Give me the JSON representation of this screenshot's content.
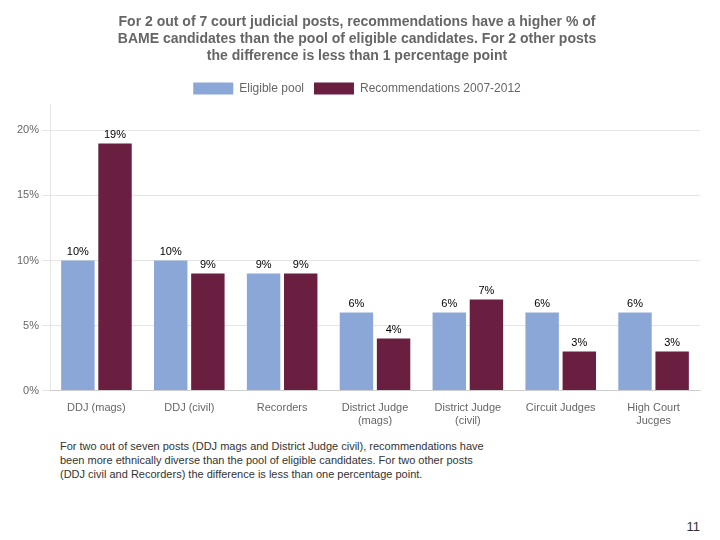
{
  "chart_data": {
    "type": "bar",
    "title": "For 2 out of 7 court judicial posts, recommendations have a higher % of\nBAME candidates than the pool of eligible candidates. For 2 other posts\nthe difference is less than 1 percentage point",
    "categories": [
      "DDJ (mags)",
      "DDJ (civil)",
      "Recorders",
      "District Judge\n(mags)",
      "District Judge\n(civil)",
      "Circuit Judges",
      "High Court\nJucges"
    ],
    "series": [
      {
        "name": "Eligible pool",
        "color": "#8BA7D8",
        "values": [
          10,
          10,
          9,
          6,
          6,
          6,
          6
        ],
        "value_labels": [
          "10%",
          "10%",
          "9%",
          "6%",
          "6%",
          "6%",
          "6%"
        ]
      },
      {
        "name": "Recommendations 2007-2012",
        "color": "#6B1F40",
        "values": [
          19,
          9,
          9,
          4,
          7,
          3,
          3
        ],
        "value_labels": [
          "19%",
          "9%",
          "9%",
          "4%",
          "7%",
          "3%",
          "3%"
        ]
      }
    ],
    "ylim": [
      0,
      22
    ],
    "yticks": [
      {
        "value": 0,
        "label": "0%"
      },
      {
        "value": 5,
        "label": "5%"
      },
      {
        "value": 10,
        "label": "10%"
      },
      {
        "value": 15,
        "label": "15%"
      },
      {
        "value": 20,
        "label": "20%"
      }
    ],
    "grid": true,
    "legend": "top",
    "data_labels": true,
    "annotations": [
      "For two out of seven posts (DDJ mags and District Judge civil), recommendations have\nbeen more ethnically diverse than the pool of eligible candidates. For two other posts\n(DDJ civil and Recorders) the difference is less than one percentage point.",
      "11"
    ]
  }
}
